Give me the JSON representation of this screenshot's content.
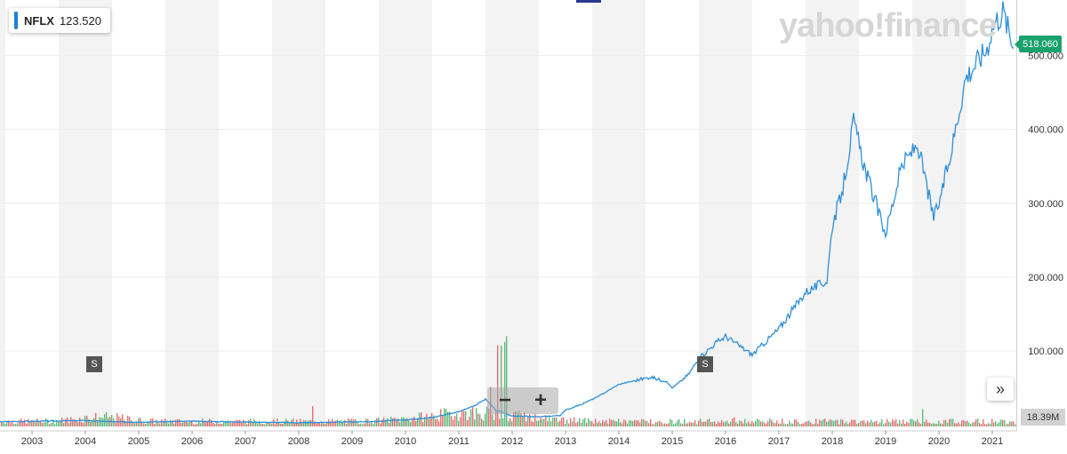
{
  "ticker": {
    "symbol": "NFLX",
    "value": "123.520",
    "color": "#1a7fd6"
  },
  "logo_text": "yahoo!finance",
  "last_price_tag": "518.060",
  "last_price_color": "#1aa26e",
  "volume_tag": "18.39M",
  "split_marker_label": "S",
  "zoom": {
    "minus": "−",
    "plus": "+"
  },
  "more_button": "»",
  "colors": {
    "line": "#2f8fd8",
    "vol_up": "#46b06a",
    "vol_down": "#e0575b",
    "band": "#f3f3f3"
  },
  "chart_data": {
    "type": "line",
    "series": [
      {
        "x": [
          2002.0,
          2003.0,
          2004.0,
          2004.3,
          2004.7,
          2005.0,
          2006.0,
          2007.0,
          2008.0,
          2009.0,
          2009.5,
          2010.0,
          2010.5,
          2011.0,
          2011.3,
          2011.5,
          2011.7,
          2012.0,
          2012.5,
          2012.9,
          2013.0,
          2013.3,
          2013.6,
          2014.0,
          2014.3,
          2014.6,
          2014.9,
          2015.0,
          2015.3,
          2015.5,
          2015.8,
          2016.0,
          2016.5,
          2017.0,
          2017.5,
          2017.9,
          2018.0,
          2018.2,
          2018.4,
          2018.6,
          2018.9,
          2019.0,
          2019.3,
          2019.6,
          2019.9,
          2020.0,
          2020.2,
          2020.5,
          2020.7,
          2020.9,
          2021.0,
          2021.2,
          2021.4
        ],
        "y": [
          4,
          5,
          6,
          5,
          4,
          4,
          5,
          4,
          3,
          4,
          5,
          7,
          10,
          18,
          26,
          35,
          20,
          12,
          11,
          13,
          20,
          28,
          38,
          55,
          60,
          65,
          58,
          50,
          68,
          90,
          110,
          120,
          95,
          130,
          180,
          195,
          270,
          320,
          410,
          350,
          280,
          260,
          350,
          380,
          280,
          300,
          360,
          470,
          490,
          510,
          540,
          560,
          510
        ]
      }
    ],
    "volume_peak_year": 2011.8,
    "x_ticks": [
      "2003",
      "2004",
      "2005",
      "2006",
      "2007",
      "2008",
      "2009",
      "2010",
      "2011",
      "2012",
      "2013",
      "2014",
      "2015",
      "2016",
      "2017",
      "2018",
      "2019",
      "2020",
      "2021"
    ],
    "x_tick_values": [
      2003,
      2004,
      2005,
      2006,
      2007,
      2008,
      2009,
      2010,
      2011,
      2012,
      2013,
      2014,
      2015,
      2016,
      2017,
      2018,
      2019,
      2020,
      2021
    ],
    "y_ticks": [
      "100.000",
      "200.000",
      "300.000",
      "400.000",
      "500.000"
    ],
    "y_tick_values": [
      100,
      200,
      300,
      400,
      500
    ],
    "xlim": [
      2002.4,
      2021.45
    ],
    "ylim": [
      -2,
      575
    ],
    "split_years": [
      2004.1,
      2015.5
    ],
    "grid": true
  }
}
